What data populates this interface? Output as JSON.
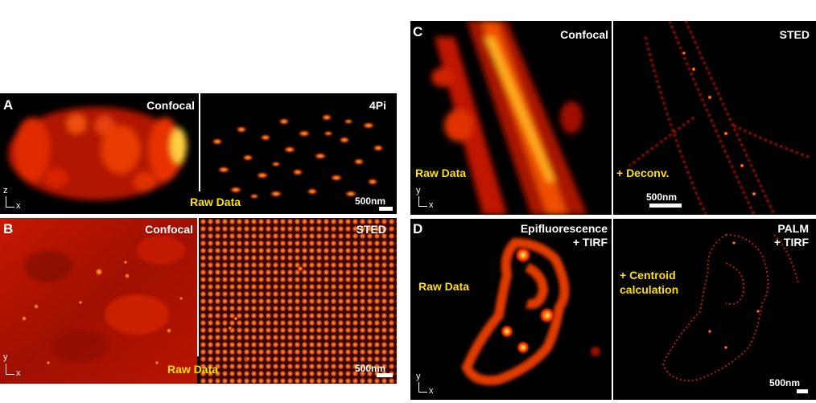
{
  "colors": {
    "label": "#ffffff",
    "highlight": "#ffe000",
    "background": "#000000"
  },
  "panel_a": {
    "letter": "A",
    "left_title": "Confocal",
    "right_title": "4Pi",
    "overlay": "Raw Data",
    "scale": "500nm",
    "axis_vertical": "z",
    "axis_horizontal": "x"
  },
  "panel_b": {
    "letter": "B",
    "left_title": "Confocal",
    "right_title": "STED",
    "overlay": "Raw Data",
    "scale": "500nm",
    "axis_vertical": "y",
    "axis_horizontal": "x"
  },
  "panel_c": {
    "letter": "C",
    "left_title": "Confocal",
    "right_title": "STED",
    "overlay_left": "Raw Data",
    "overlay_right": "+ Deconv.",
    "scale": "500nm",
    "axis_vertical": "y",
    "axis_horizontal": "x"
  },
  "panel_d": {
    "letter": "D",
    "left_title_1": "Epifluorescence",
    "left_title_2": "+ TIRF",
    "right_title_1": "PALM",
    "right_title_2": "+ TIRF",
    "overlay_left": "Raw Data",
    "overlay_right_1": "+ Centroid",
    "overlay_right_2": "calculation",
    "scale": "500nm",
    "axis_vertical": "y",
    "axis_horizontal": "x"
  }
}
